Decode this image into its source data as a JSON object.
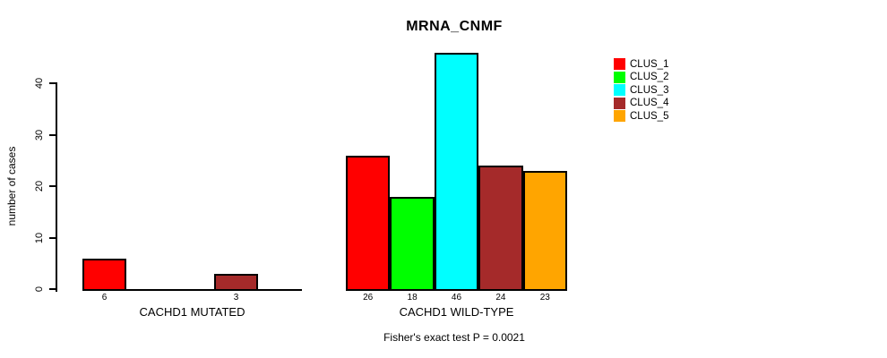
{
  "chart_data": {
    "type": "bar",
    "title": "MRNA_CNMF",
    "ylabel": "number of cases",
    "subtitle": "Fisher's exact test P = 0.0021",
    "ylim": [
      0,
      46
    ],
    "yticks": [
      0,
      10,
      20,
      30,
      40
    ],
    "grid": false,
    "series_names": [
      "CLUS_1",
      "CLUS_2",
      "CLUS_3",
      "CLUS_4",
      "CLUS_5"
    ],
    "colors": [
      "#FF0000",
      "#00FF00",
      "#00FFFF",
      "#A52A2A",
      "#FFA500"
    ],
    "groups": [
      {
        "label": "CACHD1 MUTATED",
        "values": [
          6,
          0,
          0,
          3,
          0
        ]
      },
      {
        "label": "CACHD1 WILD-TYPE",
        "values": [
          26,
          18,
          46,
          24,
          23
        ]
      }
    ],
    "bar_label_rule": "value printed under each drawn bar; zero-height bars are not drawn and not labeled",
    "legend": {
      "position": "right",
      "entries": [
        {
          "label": "CLUS_1",
          "color": "#FF0000"
        },
        {
          "label": "CLUS_2",
          "color": "#00FF00"
        },
        {
          "label": "CLUS_3",
          "color": "#00FFFF"
        },
        {
          "label": "CLUS_4",
          "color": "#A52A2A"
        },
        {
          "label": "CLUS_5",
          "color": "#FFA500"
        }
      ]
    }
  }
}
